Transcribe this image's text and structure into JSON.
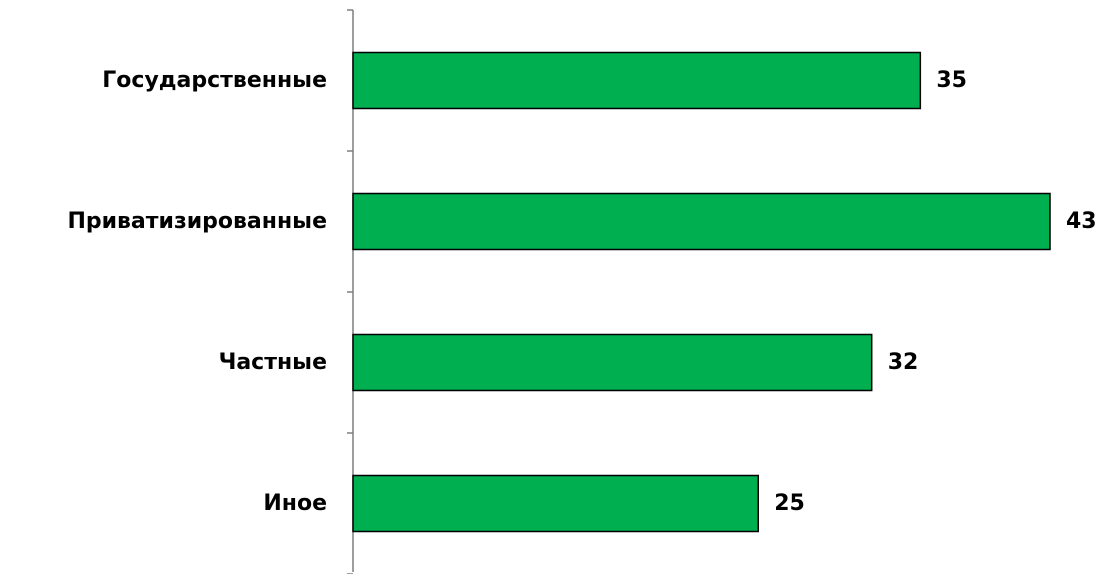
{
  "chart_data": {
    "type": "bar",
    "orientation": "horizontal",
    "categories": [
      "Государственные",
      "Приватизированные",
      "Частные",
      "Иное"
    ],
    "values": [
      35,
      43,
      32,
      25
    ],
    "value_labels": [
      "35",
      "43",
      "32",
      "25"
    ],
    "xlim": [
      0,
      43
    ],
    "grid": false,
    "legend": "none"
  },
  "colors": {
    "bar_fill": "#00b050",
    "bar_stroke": "#000000",
    "axis": "#7f7f7f"
  }
}
